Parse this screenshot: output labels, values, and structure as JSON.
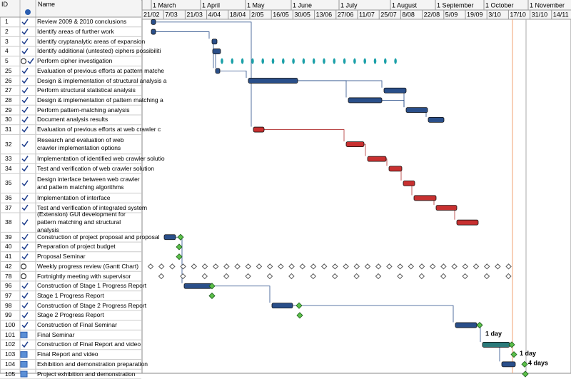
{
  "header": {
    "id": "ID",
    "name": "Name"
  },
  "timeline": {
    "months": [
      "1 March",
      "1 April",
      "1 May",
      "1 June",
      "1 July",
      "1 August",
      "1 September",
      "1 October",
      "1 November"
    ],
    "weeks": [
      "21/02",
      "7/03",
      "21/03",
      "4/04",
      "18/04",
      "2/05",
      "16/05",
      "30/05",
      "13/06",
      "27/06",
      "11/07",
      "25/07",
      "8/08",
      "22/08",
      "5/09",
      "19/09",
      "3/10",
      "17/10",
      "31/10",
      "14/11"
    ]
  },
  "rows": [
    {
      "id": "1",
      "name": "Review 2009 & 2010 conclusions"
    },
    {
      "id": "2",
      "name": "Identify areas of further work"
    },
    {
      "id": "3",
      "name": "Identify cryptanalytic areas of expansion"
    },
    {
      "id": "4",
      "name": "Identify additional (untested) ciphers possibiliti"
    },
    {
      "id": "5",
      "name": "Perform cipher investigation"
    },
    {
      "id": "25",
      "name": "Evaluation of previous efforts at pattern matche"
    },
    {
      "id": "26",
      "name": "Design & implementation of structural analysis a"
    },
    {
      "id": "27",
      "name": "Perform structural statistical analysis"
    },
    {
      "id": "28",
      "name": "Design  & implementation of pattern matching a"
    },
    {
      "id": "29",
      "name": "Perform pattern-matching analysis"
    },
    {
      "id": "30",
      "name": "Document analysis results"
    },
    {
      "id": "31",
      "name": "Evaluation of previous efforts at web crawler c"
    },
    {
      "id": "32",
      "name": "Research and evaluation of web crawler implementation options"
    },
    {
      "id": "33",
      "name": "Implementation of identified web crawler solutio"
    },
    {
      "id": "34",
      "name": "Test and verification of web crawler solution"
    },
    {
      "id": "35",
      "name": "Design interface between web crawler and pattern matching algorithms"
    },
    {
      "id": "36",
      "name": "Implementation of interface"
    },
    {
      "id": "37",
      "name": "Test and verification of integrated system"
    },
    {
      "id": "38",
      "name": "(Extension) GUI development for pattern matching and structural analysis"
    },
    {
      "id": "39",
      "name": "Construction of project proposal and proposal"
    },
    {
      "id": "40",
      "name": "Preparation of project budget"
    },
    {
      "id": "41",
      "name": "Proposal Seminar"
    },
    {
      "id": "42",
      "name": "Weekly progress review (Gantt Chart)"
    },
    {
      "id": "78",
      "name": "Fortnightly meeting with supervisor"
    },
    {
      "id": "96",
      "name": "Construction of Stage 1 Progress Report"
    },
    {
      "id": "97",
      "name": "Stage 1 Progress Report"
    },
    {
      "id": "98",
      "name": "Construction of Stage 2 Progress Report"
    },
    {
      "id": "99",
      "name": "Stage 2 Progress Report"
    },
    {
      "id": "100",
      "name": "Construction of Final Seminar"
    },
    {
      "id": "101",
      "name": "Final Seminar"
    },
    {
      "id": "102",
      "name": "Construction of Final Report and video"
    },
    {
      "id": "103",
      "name": "Final Report and video"
    },
    {
      "id": "104",
      "name": "Exhibition and demonstration preparation"
    },
    {
      "id": "105",
      "name": "Project exhibition and demonstration"
    }
  ],
  "bar_labels": [
    "1 day",
    "1 day",
    "4 days"
  ]
}
